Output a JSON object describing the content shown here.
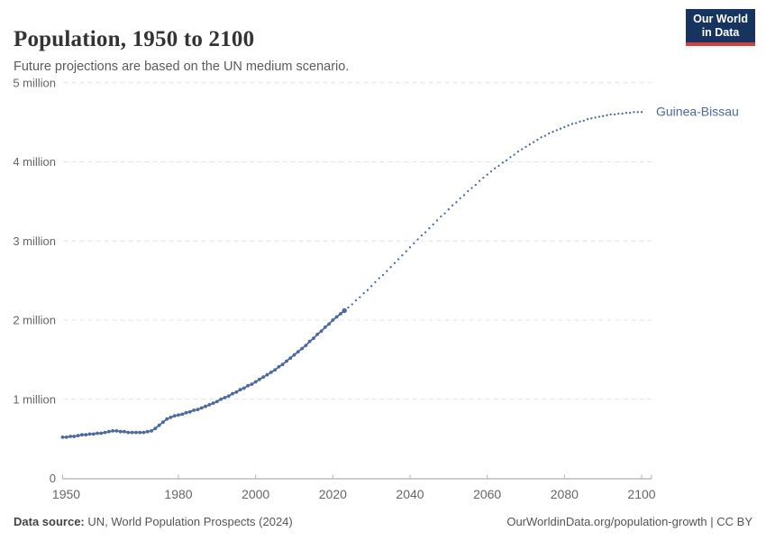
{
  "header": {
    "title": "Population, 1950 to 2100",
    "subtitle": "Future projections are based on the UN medium scenario."
  },
  "logo": {
    "line1": "Our World",
    "line2": "in Data",
    "bg_color": "#16345f",
    "accent_color": "#d0413c"
  },
  "footer": {
    "source_label": "Data source:",
    "source_text": " UN, World Population Prospects (2024)",
    "credit": "OurWorldinData.org/population-growth | CC BY"
  },
  "colors": {
    "line": "#4c6a9c",
    "grid": "#e2e2e2",
    "axis": "#9c9c9c",
    "tick": "#b5b5b5",
    "tick_label": "#666666"
  },
  "chart_data": {
    "type": "line",
    "title": "Population, 1950 to 2100",
    "entity": "Guinea-Bissau",
    "unit": "people",
    "xlim": [
      1950,
      2100
    ],
    "ylim_millions": [
      0,
      5
    ],
    "x_ticks": [
      1950,
      1980,
      2000,
      2020,
      2040,
      2060,
      2080,
      2100
    ],
    "y_ticks": [
      {
        "value_millions": 0,
        "label": "0"
      },
      {
        "value_millions": 1,
        "label": "1 million"
      },
      {
        "value_millions": 2,
        "label": "2 million"
      },
      {
        "value_millions": 3,
        "label": "3 million"
      },
      {
        "value_millions": 4,
        "label": "4 million"
      },
      {
        "value_millions": 5,
        "label": "5 million"
      }
    ],
    "grid": "horizontal-dashed",
    "legend_position": "end-of-line-label",
    "series": [
      {
        "name": "Guinea-Bissau",
        "color": "#4c6a9c",
        "historical": {
          "start_year": 1950,
          "end_year": 2023,
          "style": "solid-with-markers",
          "values_millions": [
            0.52,
            0.52,
            0.53,
            0.53,
            0.54,
            0.55,
            0.55,
            0.56,
            0.56,
            0.57,
            0.57,
            0.58,
            0.59,
            0.6,
            0.6,
            0.59,
            0.59,
            0.58,
            0.58,
            0.58,
            0.58,
            0.58,
            0.59,
            0.6,
            0.63,
            0.67,
            0.71,
            0.75,
            0.77,
            0.79,
            0.8,
            0.81,
            0.83,
            0.84,
            0.86,
            0.87,
            0.89,
            0.91,
            0.93,
            0.95,
            0.97,
            1.0,
            1.02,
            1.04,
            1.07,
            1.09,
            1.12,
            1.14,
            1.17,
            1.19,
            1.22,
            1.25,
            1.28,
            1.31,
            1.34,
            1.37,
            1.41,
            1.44,
            1.48,
            1.52,
            1.56,
            1.6,
            1.64,
            1.68,
            1.73,
            1.77,
            1.82,
            1.86,
            1.91,
            1.95,
            2.0,
            2.04,
            2.08,
            2.12
          ]
        },
        "projection": {
          "start_year": 2024,
          "end_year": 2100,
          "style": "dotted",
          "values_millions": [
            2.16,
            2.2,
            2.25,
            2.29,
            2.34,
            2.38,
            2.43,
            2.48,
            2.53,
            2.57,
            2.62,
            2.67,
            2.72,
            2.77,
            2.82,
            2.87,
            2.92,
            2.97,
            3.02,
            3.07,
            3.11,
            3.16,
            3.21,
            3.26,
            3.31,
            3.35,
            3.4,
            3.45,
            3.49,
            3.54,
            3.58,
            3.63,
            3.67,
            3.71,
            3.76,
            3.8,
            3.84,
            3.88,
            3.92,
            3.95,
            3.99,
            4.02,
            4.06,
            4.09,
            4.13,
            4.16,
            4.19,
            4.22,
            4.25,
            4.28,
            4.31,
            4.33,
            4.36,
            4.38,
            4.4,
            4.42,
            4.44,
            4.46,
            4.48,
            4.49,
            4.51,
            4.52,
            4.54,
            4.55,
            4.56,
            4.57,
            4.58,
            4.59,
            4.6,
            4.6,
            4.61,
            4.61,
            4.62,
            4.62,
            4.63,
            4.63,
            4.63
          ]
        }
      }
    ]
  }
}
